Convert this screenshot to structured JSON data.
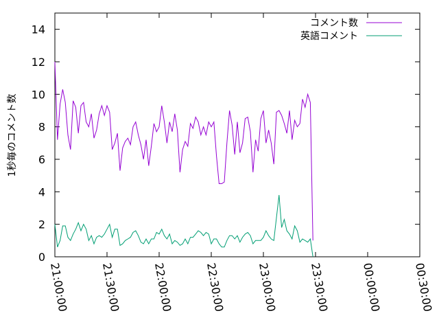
{
  "chart_data": {
    "type": "line",
    "ylabel": "1秒毎のコメント数",
    "ylim": [
      0,
      15
    ],
    "yticks": [
      "0",
      "2",
      "4",
      "6",
      "8",
      "10",
      "12",
      "14"
    ],
    "xlim": [
      "21:00:00",
      "00:30:00"
    ],
    "xticks": [
      "21:00:00",
      "21:30:00",
      "22:00:00",
      "22:30:00",
      "23:00:00",
      "23:30:00",
      "00:00:00",
      "00:30:00"
    ],
    "legend_position": "top-right",
    "grid": false,
    "series": [
      {
        "name": "コメント数",
        "color": "#9400d3",
        "x_start": "21:00:00",
        "x_step_minutes": 1.5,
        "values": [
          12.0,
          7.2,
          9.4,
          10.3,
          9.5,
          7.5,
          6.6,
          9.6,
          9.2,
          7.6,
          9.3,
          9.5,
          8.3,
          8.0,
          8.8,
          7.3,
          7.8,
          8.8,
          9.3,
          8.7,
          9.3,
          8.9,
          6.6,
          7.0,
          7.6,
          5.3,
          6.7,
          7.1,
          7.3,
          6.9,
          8.0,
          8.3,
          7.5,
          6.9,
          6.0,
          7.2,
          5.6,
          6.8,
          8.2,
          7.7,
          8.0,
          9.3,
          8.3,
          7.0,
          8.3,
          7.7,
          8.8,
          7.8,
          5.2,
          6.6,
          7.1,
          6.8,
          8.2,
          7.9,
          8.6,
          8.3,
          7.5,
          8.0,
          7.5,
          8.3,
          8.0,
          8.3,
          6.2,
          4.5,
          4.5,
          4.6,
          7.0,
          9.0,
          8.1,
          6.3,
          8.3,
          6.4,
          7.0,
          8.5,
          8.6,
          7.7,
          5.2,
          7.2,
          6.5,
          8.5,
          9.0,
          7.0,
          7.8,
          7.0,
          5.7,
          8.9,
          9.0,
          8.7,
          8.2,
          7.6,
          9.0,
          7.2,
          8.4,
          8.0,
          8.2,
          9.7,
          9.2,
          10.0,
          9.5,
          1.0
        ]
      },
      {
        "name": "英語コメント",
        "color": "#009e73",
        "x_start": "21:00:00",
        "x_step_minutes": 1.5,
        "values": [
          2.0,
          0.6,
          1.0,
          1.9,
          1.9,
          1.2,
          1.0,
          1.4,
          1.7,
          2.1,
          1.6,
          2.0,
          1.7,
          1.0,
          1.3,
          0.8,
          1.2,
          1.3,
          1.2,
          1.4,
          1.7,
          2.0,
          1.2,
          1.7,
          1.7,
          0.7,
          0.8,
          1.0,
          1.1,
          1.2,
          1.5,
          1.6,
          1.3,
          0.9,
          0.8,
          1.1,
          0.8,
          1.1,
          1.1,
          1.5,
          1.4,
          1.7,
          1.3,
          1.1,
          1.4,
          0.8,
          1.0,
          0.9,
          0.7,
          0.8,
          1.1,
          0.8,
          1.2,
          1.2,
          1.4,
          1.6,
          1.5,
          1.3,
          1.5,
          1.4,
          0.8,
          1.1,
          1.1,
          0.8,
          0.6,
          0.6,
          1.0,
          1.3,
          1.3,
          1.1,
          1.3,
          0.9,
          1.2,
          1.4,
          1.5,
          1.3,
          0.8,
          1.0,
          1.0,
          1.0,
          1.2,
          1.6,
          1.3,
          1.1,
          1.0,
          2.4,
          3.8,
          1.8,
          2.3,
          1.6,
          1.4,
          1.1,
          1.9,
          1.6,
          0.9,
          1.1,
          1.0,
          0.9,
          1.1,
          0.0
        ]
      }
    ]
  }
}
